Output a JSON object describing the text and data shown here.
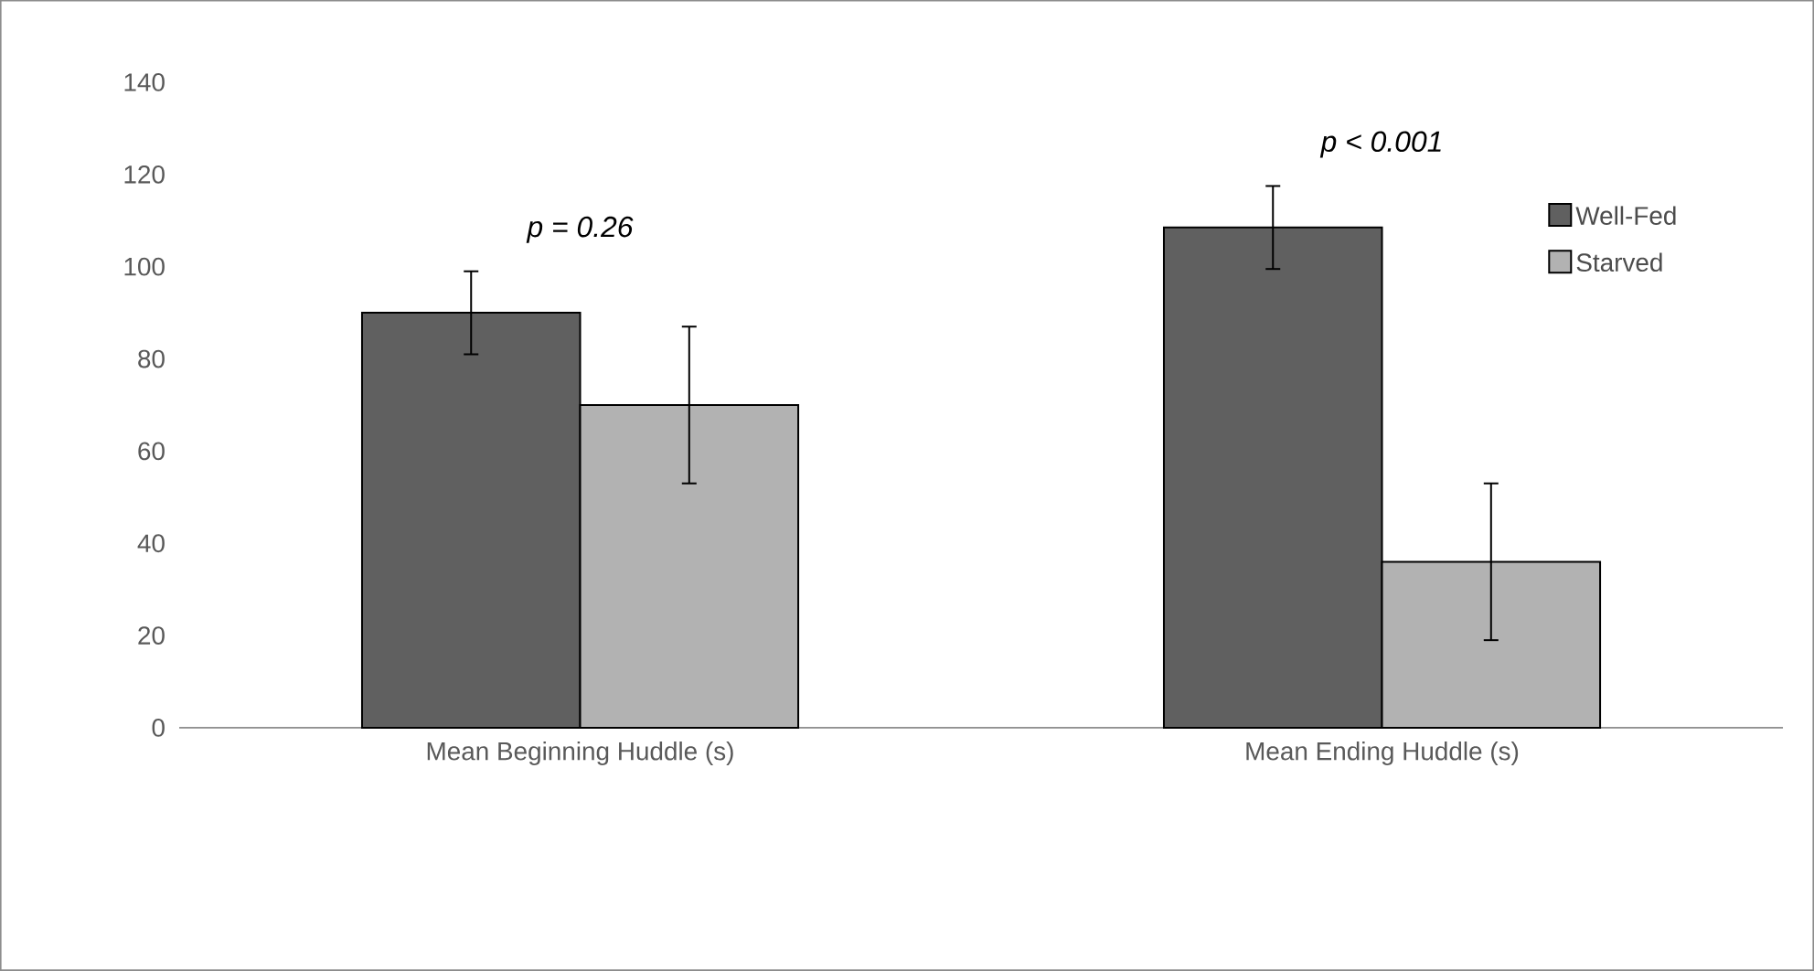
{
  "chart_data": {
    "type": "bar",
    "categories": [
      "Mean Beginning Huddle (s)",
      "Mean Ending Huddle (s)"
    ],
    "series": [
      {
        "name": "Well-Fed",
        "color": "#606060",
        "values": [
          90,
          108.5
        ],
        "errors": [
          9,
          9
        ]
      },
      {
        "name": "Starved",
        "color": "#b2b2b2",
        "values": [
          70,
          36
        ],
        "errors": [
          17,
          17
        ]
      }
    ],
    "ylim": [
      0,
      140
    ],
    "yticks": [
      0,
      20,
      40,
      60,
      80,
      100,
      120,
      140
    ],
    "grid": false,
    "legend": "top right",
    "annotations": [
      "p = 0.26",
      "p < 0.001"
    ]
  }
}
